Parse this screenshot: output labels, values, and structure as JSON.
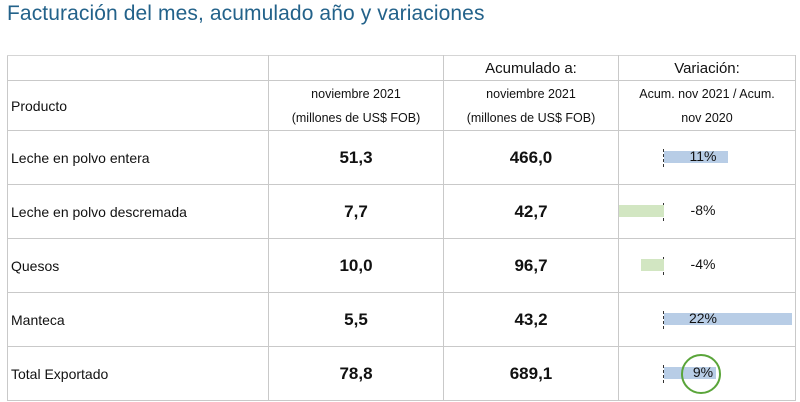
{
  "title": "Facturación del mes, acumulado año y variaciones",
  "table": {
    "header": {
      "product": "Producto",
      "month_label": "noviembre 2021",
      "month_unit": "(millones de US$ FOB)",
      "acum_title": "Acumulado a:",
      "acum_label": "noviembre 2021",
      "acum_unit": "(millones de US$ FOB)",
      "var_title": "Variación:",
      "var_line1": "Acum. nov 2021 / Acum.",
      "var_line2": "nov 2020"
    },
    "rows": [
      {
        "product": "Leche en polvo entera",
        "month": "51,3",
        "acum": "466,0",
        "var_label": "11%",
        "var_pct": 11
      },
      {
        "product": "Leche en polvo descremada",
        "month": "7,7",
        "acum": "42,7",
        "var_label": "-8%",
        "var_pct": -8
      },
      {
        "product": "Quesos",
        "month": "10,0",
        "acum": "96,7",
        "var_label": "-4%",
        "var_pct": -4
      },
      {
        "product": "Manteca",
        "month": "5,5",
        "acum": "43,2",
        "var_label": "22%",
        "var_pct": 22
      },
      {
        "product": "Total Exportado",
        "month": "78,8",
        "acum": "689,1",
        "var_label": "9%",
        "var_pct": 9
      }
    ]
  },
  "colors": {
    "title": "#23628a",
    "month_values": "#79bf45",
    "acum_values": "#3d6395",
    "positive_bar": "#b8cde6",
    "negative_bar": "#d2e6c2",
    "highlight_circle": "#5aa53a"
  }
}
